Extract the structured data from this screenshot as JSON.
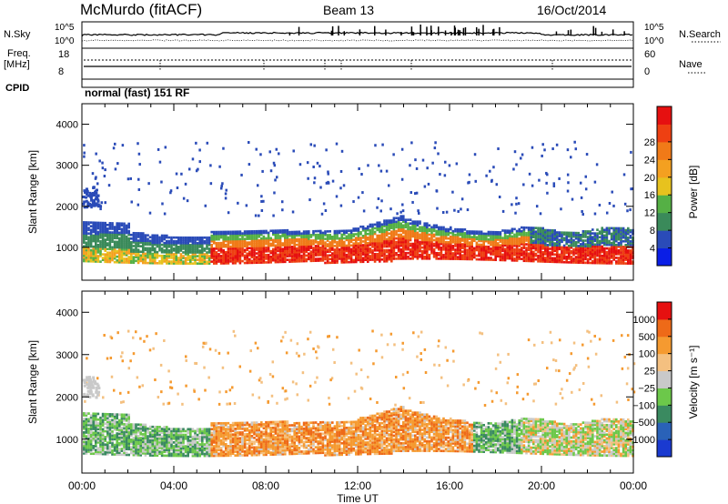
{
  "header": {
    "station": "McMurdo (fitACF)",
    "beam": "Beam 13",
    "date": "16/Oct/2014"
  },
  "param_panel": {
    "nsky_label": "N.Sky",
    "nsky_ticks": [
      "10^5",
      "10^0"
    ],
    "nsearch_label": "N.Search",
    "nsearch_ticks": [
      "10^5",
      "10^0"
    ],
    "freq_label_1": "Freq.",
    "freq_label_2": "[MHz]",
    "freq_ticks": [
      "18",
      "8"
    ],
    "nave_label": "Nave",
    "nave_ticks": [
      "60",
      "0"
    ],
    "cpid_label": "CPID",
    "cpid_value": "normal (fast) 151 RF"
  },
  "chart_data": [
    {
      "type": "heatmap",
      "name": "power",
      "ylabel": "Slant Range [km]",
      "ylim": [
        200,
        4500
      ],
      "yticks": [
        "1000",
        "2000",
        "3000",
        "4000"
      ],
      "xticks": [
        "00:00",
        "04:00",
        "08:00",
        "12:00",
        "16:00",
        "20:00",
        "00:00"
      ],
      "xlim_hours": [
        0,
        24
      ],
      "colorbar_label": "Power [dB]",
      "colorbar_ticks": [
        "4",
        "8",
        "12",
        "16",
        "20",
        "24",
        "28"
      ],
      "colorbar_colors": [
        "#0a1ee6",
        "#2a4bb8",
        "#3a8a5a",
        "#55b045",
        "#e7c21e",
        "#f4a020",
        "#f07a18",
        "#ee4012",
        "#e61010"
      ]
    },
    {
      "type": "heatmap",
      "name": "velocity",
      "ylabel": "Slant Range [km]",
      "ylim": [
        200,
        4500
      ],
      "yticks": [
        "1000",
        "2000",
        "3000",
        "4000"
      ],
      "xticks": [
        "00:00",
        "04:00",
        "08:00",
        "12:00",
        "16:00",
        "20:00",
        "00:00"
      ],
      "xlim_hours": [
        0,
        24
      ],
      "xlabel": "Time UT",
      "colorbar_label": "Velocity [m s⁻¹]",
      "colorbar_ticks": [
        "1000",
        "500",
        "100",
        "25",
        "−25",
        "−100",
        "−500",
        "−1000"
      ],
      "colorbar_colors": [
        "#1a3ad0",
        "#2a62b8",
        "#3a8a60",
        "#6cc84a",
        "#c9c9c9",
        "#f4c080",
        "#f59a30",
        "#ee6a18",
        "#e61010"
      ]
    }
  ]
}
